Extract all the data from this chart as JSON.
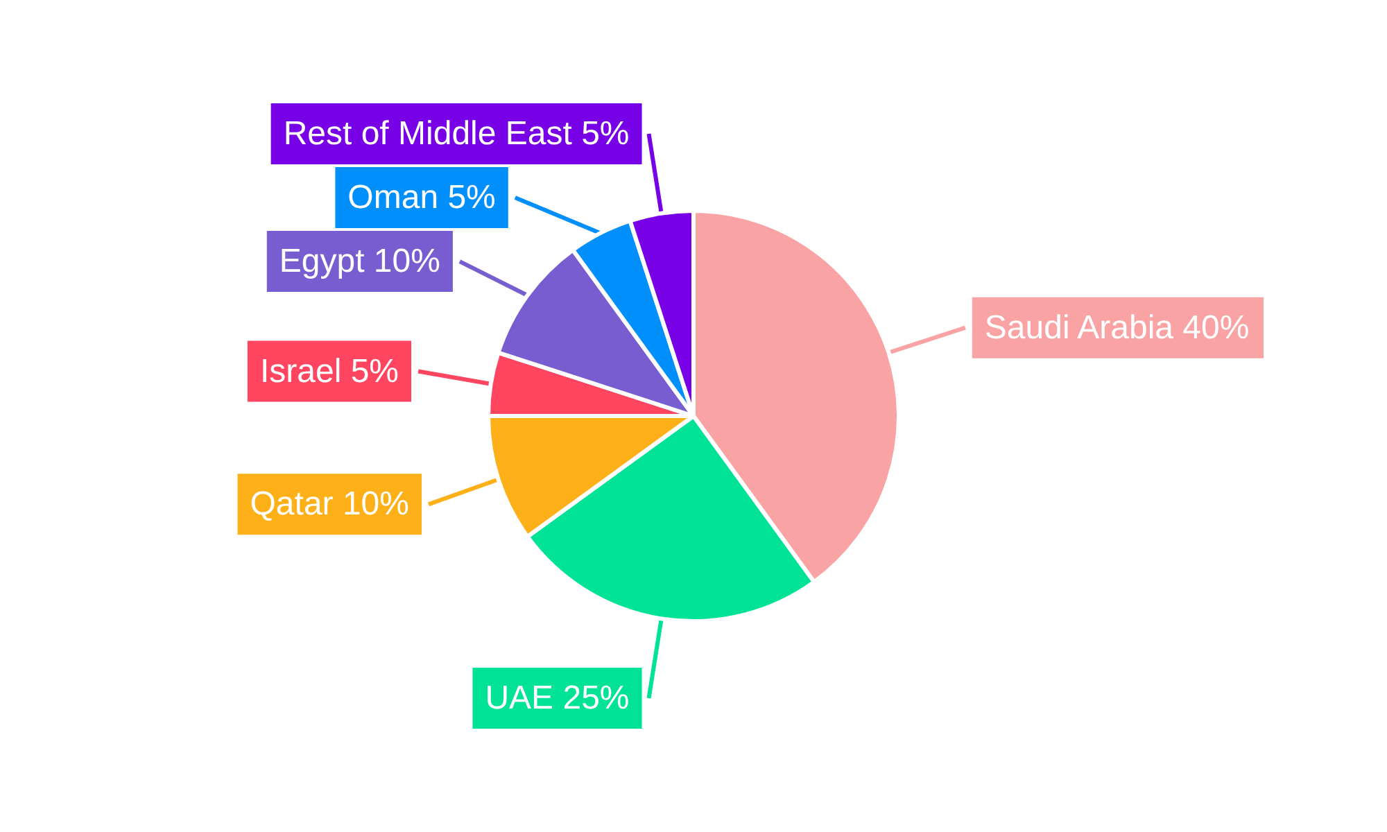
{
  "chart_data": {
    "type": "pie",
    "categories": [
      "Saudi Arabia",
      "UAE",
      "Qatar",
      "Israel",
      "Egypt",
      "Oman",
      "Rest of Middle East"
    ],
    "values": [
      40,
      25,
      10,
      5,
      10,
      5,
      5
    ],
    "colors": [
      "#f9a3a4",
      "#00e396",
      "#feb019",
      "#ff4560",
      "#775dd0",
      "#008ffb",
      "#7800e6"
    ],
    "value_labels": [
      "40%",
      "25%",
      "10%",
      "5%",
      "10%",
      "5%",
      "5%"
    ]
  }
}
